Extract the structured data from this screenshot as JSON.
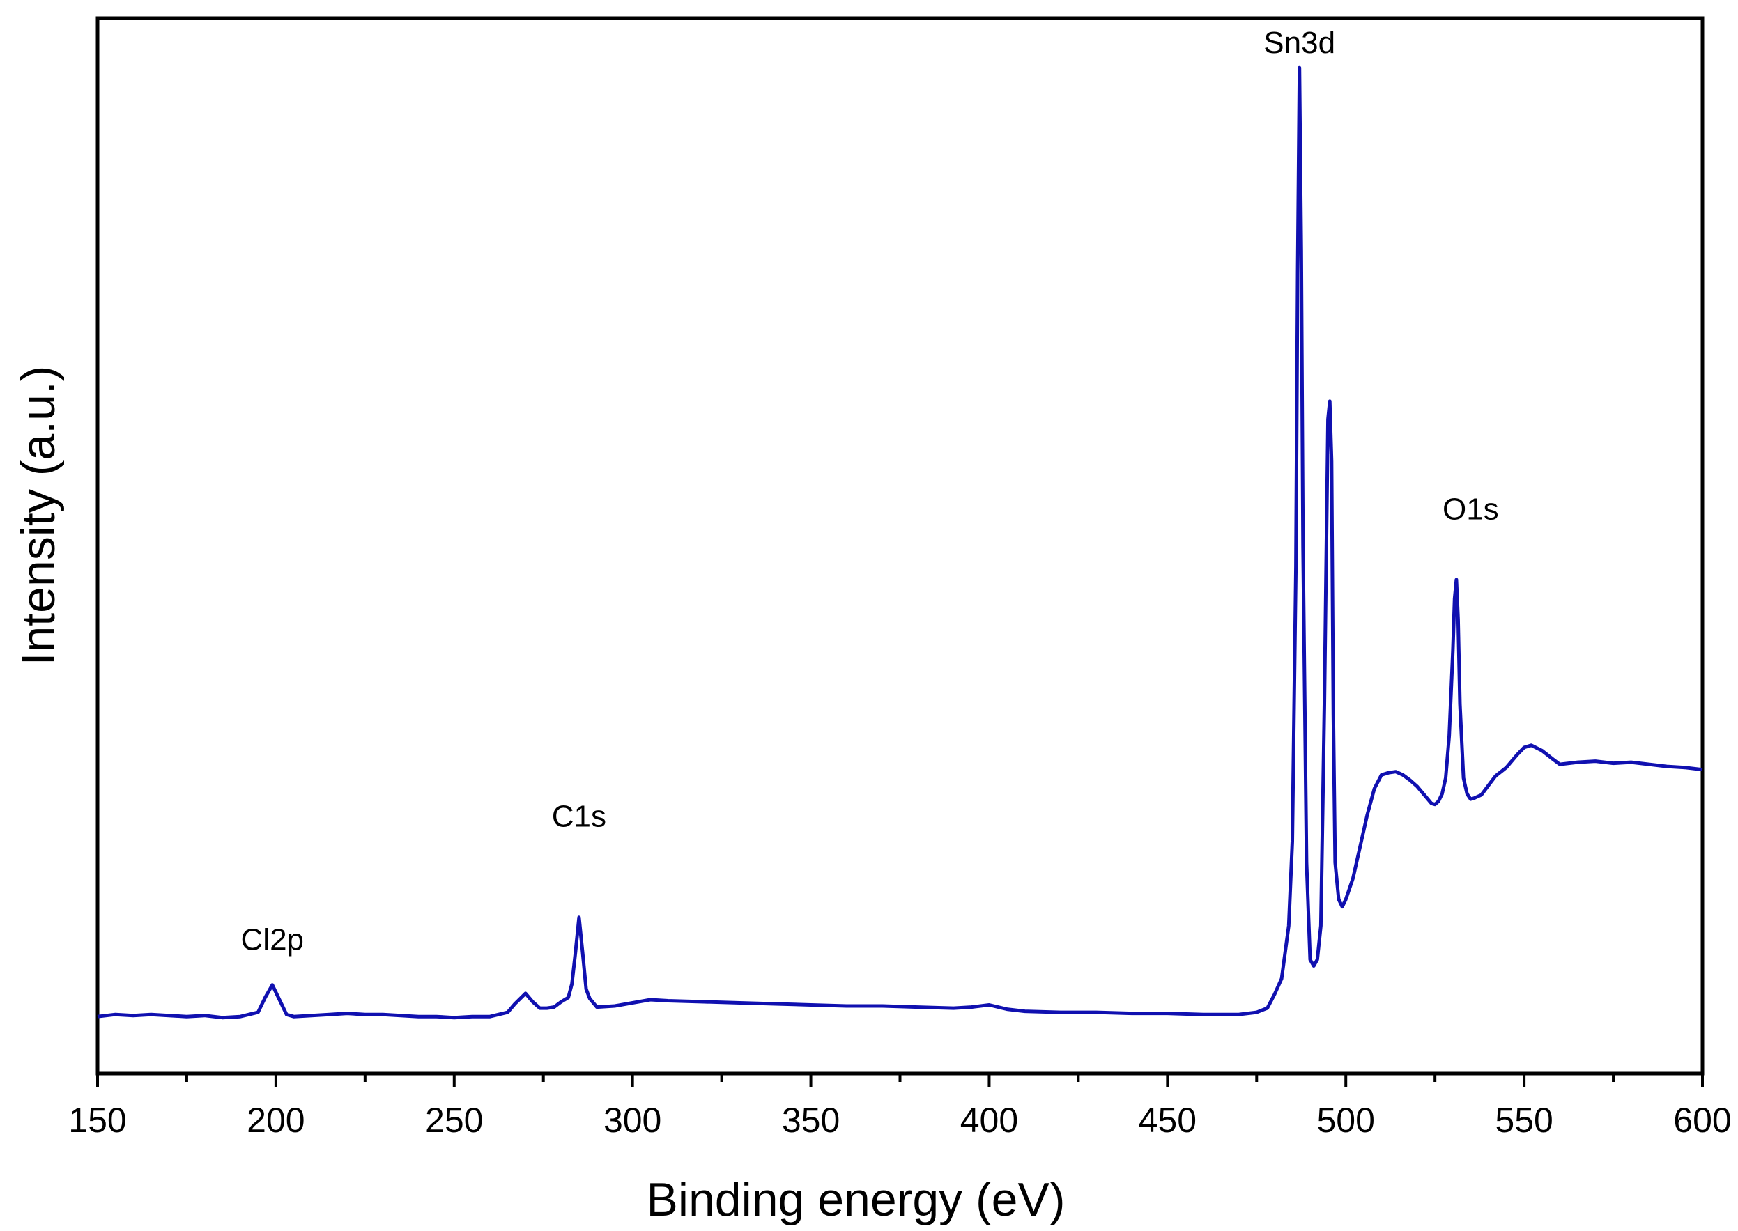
{
  "chart_data": {
    "type": "line",
    "title": "",
    "xlabel": "Binding energy (eV)",
    "ylabel": "Intensity (a.u.)",
    "xlim": [
      150,
      600
    ],
    "ylim": [
      0,
      100
    ],
    "x_ticks": [
      "150",
      "200",
      "250",
      "300",
      "350",
      "400",
      "450",
      "500",
      "550",
      "600"
    ],
    "y_ticks_shown": false,
    "grid": false,
    "line_color": "#1010b0",
    "annotations": [
      {
        "text": "Cl2p",
        "x": 199,
        "y": 11.7
      },
      {
        "text": "C1s",
        "x": 285,
        "y": 23.4
      },
      {
        "text": "Sn3d",
        "x": 487,
        "y": 96.7
      },
      {
        "text": "O1s",
        "x": 535,
        "y": 52.5
      }
    ],
    "series": [
      {
        "x": [
          150,
          155,
          160,
          165,
          170,
          175,
          180,
          185,
          190,
          195,
          197,
          199,
          201,
          203,
          205,
          210,
          215,
          220,
          225,
          230,
          235,
          240,
          245,
          250,
          255,
          260,
          265,
          267,
          270,
          272,
          274,
          276,
          278,
          280,
          282,
          283,
          284,
          285,
          286,
          287,
          288,
          290,
          295,
          300,
          305,
          310,
          320,
          330,
          340,
          350,
          360,
          370,
          380,
          390,
          395,
          400,
          405,
          410,
          420,
          430,
          440,
          450,
          460,
          470,
          475,
          478,
          480,
          482,
          484,
          485,
          486,
          486.5,
          487,
          487.5,
          488,
          489,
          490,
          491,
          492,
          493,
          494,
          495,
          495.5,
          496,
          496.5,
          497,
          498,
          499,
          500,
          502,
          504,
          506,
          508,
          510,
          512,
          514,
          516,
          518,
          520,
          522,
          524,
          525,
          526,
          527,
          528,
          529,
          530,
          530.5,
          531,
          531.5,
          532,
          533,
          534,
          535,
          536,
          538,
          540,
          542,
          545,
          548,
          550,
          552,
          555,
          558,
          560,
          565,
          570,
          575,
          580,
          585,
          590,
          595,
          600
        ],
        "values": [
          5.4,
          5.6,
          5.5,
          5.6,
          5.5,
          5.4,
          5.5,
          5.3,
          5.4,
          5.8,
          7.2,
          8.4,
          7.0,
          5.6,
          5.4,
          5.5,
          5.6,
          5.7,
          5.6,
          5.6,
          5.5,
          5.4,
          5.4,
          5.3,
          5.4,
          5.4,
          5.8,
          6.6,
          7.6,
          6.8,
          6.2,
          6.2,
          6.3,
          6.8,
          7.2,
          8.5,
          11.5,
          14.8,
          11.5,
          8.0,
          7.1,
          6.3,
          6.4,
          6.7,
          7.0,
          6.9,
          6.8,
          6.7,
          6.6,
          6.5,
          6.4,
          6.4,
          6.3,
          6.2,
          6.3,
          6.5,
          6.1,
          5.9,
          5.8,
          5.8,
          5.7,
          5.7,
          5.6,
          5.6,
          5.8,
          6.2,
          7.5,
          9.0,
          14.0,
          22.0,
          48.0,
          76.0,
          95.3,
          78.0,
          50.0,
          20.0,
          10.8,
          10.2,
          10.8,
          14.0,
          35.0,
          62.0,
          63.7,
          58.0,
          34.0,
          20.0,
          16.5,
          15.8,
          16.5,
          18.5,
          21.5,
          24.5,
          27.0,
          28.3,
          28.5,
          28.6,
          28.3,
          27.8,
          27.2,
          26.4,
          25.6,
          25.5,
          25.8,
          26.5,
          28.0,
          32.0,
          40.0,
          45.0,
          46.8,
          43.0,
          35.0,
          28.0,
          26.5,
          26.0,
          26.1,
          26.4,
          27.3,
          28.2,
          29.0,
          30.2,
          30.9,
          31.1,
          30.6,
          29.8,
          29.3,
          29.5,
          29.6,
          29.4,
          29.5,
          29.3,
          29.1,
          29.0,
          28.8
        ]
      }
    ]
  }
}
